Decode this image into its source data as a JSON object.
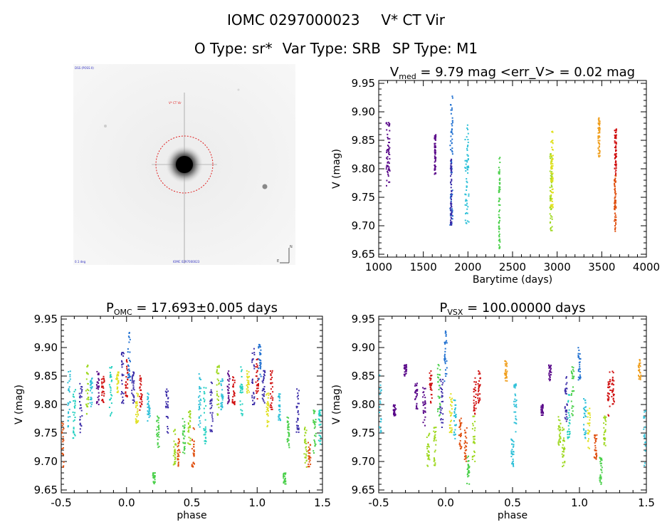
{
  "header": {
    "object_id": "IOMC 0297000023",
    "star_name": "V* CT Vir",
    "o_type": "O Type: sr*",
    "var_type": "Var Type: SRB",
    "sp_type": "SP Type: M1"
  },
  "finder_chart": {
    "labels": [
      "DSS (POSS II)",
      "V* CT Vir",
      "N",
      "E",
      "0.1 deg",
      "IOMC 0297000023"
    ],
    "circle_color": "#e02020"
  },
  "season_colors": [
    "#5a0a8a",
    "#3b2ca8",
    "#1e6fd0",
    "#2ec0d8",
    "#22d0c0",
    "#4ad04a",
    "#9ed820",
    "#e0e020",
    "#f0a020",
    "#e05010",
    "#d01010"
  ],
  "chart_data": [
    {
      "id": "lightcurve",
      "type": "scatter",
      "title_main": "V",
      "title_sub": "med",
      "title_rest": " = 9.79 mag <err_V> = 0.02 mag",
      "xlabel": "Barytime (days)",
      "ylabel": "V (mag)",
      "xlim": [
        1000,
        4000
      ],
      "ylim": [
        9.955,
        9.645
      ],
      "xticks": [
        1000,
        1500,
        2000,
        2500,
        3000,
        3500,
        4000
      ],
      "xtick_labels": [
        "1000",
        "1500",
        "2000",
        "2500",
        "3000",
        "3500",
        "4000"
      ],
      "yticks": [
        9.65,
        9.7,
        9.75,
        9.8,
        9.85,
        9.9,
        9.95
      ],
      "ytick_labels": [
        "9.65",
        "9.70",
        "9.75",
        "9.80",
        "9.85",
        "9.90",
        "9.95"
      ],
      "seasons": [
        {
          "t0": 1085,
          "t1": 1125,
          "vmin": 9.77,
          "vmax": 9.89,
          "color": 0
        },
        {
          "t0": 1625,
          "t1": 1640,
          "vmin": 9.79,
          "vmax": 9.86,
          "color": 0
        },
        {
          "t0": 1800,
          "t1": 1830,
          "vmin": 9.7,
          "vmax": 9.93,
          "color": 2
        },
        {
          "t0": 1805,
          "t1": 1818,
          "vmin": 9.7,
          "vmax": 9.82,
          "color": 1
        },
        {
          "t0": 1965,
          "t1": 2010,
          "vmin": 9.7,
          "vmax": 9.88,
          "color": 3
        },
        {
          "t0": 2345,
          "t1": 2360,
          "vmin": 9.66,
          "vmax": 9.82,
          "color": 5
        },
        {
          "t0": 2920,
          "t1": 2945,
          "vmin": 9.69,
          "vmax": 9.83,
          "color": 6
        },
        {
          "t0": 2930,
          "t1": 2955,
          "vmin": 9.73,
          "vmax": 9.87,
          "color": 7
        },
        {
          "t0": 3460,
          "t1": 3480,
          "vmin": 9.82,
          "vmax": 9.89,
          "color": 8
        },
        {
          "t0": 3640,
          "t1": 3660,
          "vmin": 9.69,
          "vmax": 9.79,
          "color": 9
        },
        {
          "t0": 3645,
          "t1": 3665,
          "vmin": 9.79,
          "vmax": 9.87,
          "color": 10
        }
      ]
    },
    {
      "id": "phase_omc",
      "type": "scatter",
      "title_main": "P",
      "title_sub": "OMC",
      "title_rest": " = 17.693±0.005 days",
      "xlabel": "phase",
      "ylabel": "V (mag)",
      "xlim": [
        -0.5,
        1.5
      ],
      "ylim": [
        9.955,
        9.645
      ],
      "xticks": [
        -0.5,
        0.0,
        0.5,
        1.0,
        1.5
      ],
      "xtick_labels": [
        "-0.5",
        "0.0",
        "0.5",
        "1.0",
        "1.5"
      ],
      "yticks": [
        9.65,
        9.7,
        9.75,
        9.8,
        9.85,
        9.9,
        9.95
      ],
      "ytick_labels": [
        "9.65",
        "9.70",
        "9.75",
        "9.80",
        "9.85",
        "9.90",
        "9.95"
      ],
      "clusters": [
        {
          "ph": -0.49,
          "vmin": 9.69,
          "vmax": 9.77,
          "color": 9
        },
        {
          "ph": -0.44,
          "vmin": 9.76,
          "vmax": 9.86,
          "color": 3
        },
        {
          "ph": -0.4,
          "vmin": 9.73,
          "vmax": 9.83,
          "color": 4
        },
        {
          "ph": -0.35,
          "vmin": 9.75,
          "vmax": 9.84,
          "color": 1
        },
        {
          "ph": -0.3,
          "vmin": 9.78,
          "vmax": 9.87,
          "color": 6
        },
        {
          "ph": -0.27,
          "vmin": 9.79,
          "vmax": 9.85,
          "color": 3
        },
        {
          "ph": -0.22,
          "vmin": 9.8,
          "vmax": 9.86,
          "color": 0
        },
        {
          "ph": -0.18,
          "vmin": 9.8,
          "vmax": 9.85,
          "color": 10
        },
        {
          "ph": -0.12,
          "vmin": 9.78,
          "vmax": 9.87,
          "color": 4
        },
        {
          "ph": -0.07,
          "vmin": 9.82,
          "vmax": 9.86,
          "color": 7
        },
        {
          "ph": -0.03,
          "vmin": 9.8,
          "vmax": 9.9,
          "color": 1
        },
        {
          "ph": 0.0,
          "vmin": 9.81,
          "vmax": 9.88,
          "color": 10
        },
        {
          "ph": 0.02,
          "vmin": 9.84,
          "vmax": 9.93,
          "color": 2
        },
        {
          "ph": 0.05,
          "vmin": 9.8,
          "vmax": 9.86,
          "color": 1
        },
        {
          "ph": 0.08,
          "vmin": 9.76,
          "vmax": 9.82,
          "color": 7
        },
        {
          "ph": 0.11,
          "vmin": 9.79,
          "vmax": 9.86,
          "color": 10
        },
        {
          "ph": 0.17,
          "vmin": 9.77,
          "vmax": 9.82,
          "color": 3
        },
        {
          "ph": 0.21,
          "vmin": 9.66,
          "vmax": 9.68,
          "color": 5
        },
        {
          "ph": 0.24,
          "vmin": 9.72,
          "vmax": 9.78,
          "color": 5
        },
        {
          "ph": 0.31,
          "vmin": 9.75,
          "vmax": 9.83,
          "color": 1
        },
        {
          "ph": 0.37,
          "vmin": 9.69,
          "vmax": 9.76,
          "color": 6
        },
        {
          "ph": 0.4,
          "vmin": 9.69,
          "vmax": 9.74,
          "color": 9
        },
        {
          "ph": 0.44,
          "vmin": 9.71,
          "vmax": 9.78,
          "color": 5
        },
        {
          "ph": 0.48,
          "vmin": 9.73,
          "vmax": 9.79,
          "color": 6
        },
        {
          "ph": 0.51,
          "vmin": 9.69,
          "vmax": 9.76,
          "color": 9
        },
        {
          "ph": 0.56,
          "vmin": 9.76,
          "vmax": 9.86,
          "color": 3
        },
        {
          "ph": 0.6,
          "vmin": 9.73,
          "vmax": 9.83,
          "color": 4
        },
        {
          "ph": 0.65,
          "vmin": 9.75,
          "vmax": 9.84,
          "color": 1
        },
        {
          "ph": 0.7,
          "vmin": 9.78,
          "vmax": 9.87,
          "color": 6
        },
        {
          "ph": 0.73,
          "vmin": 9.79,
          "vmax": 9.85,
          "color": 3
        },
        {
          "ph": 0.78,
          "vmin": 9.8,
          "vmax": 9.86,
          "color": 0
        },
        {
          "ph": 0.82,
          "vmin": 9.8,
          "vmax": 9.85,
          "color": 10
        },
        {
          "ph": 0.88,
          "vmin": 9.78,
          "vmax": 9.87,
          "color": 4
        },
        {
          "ph": 0.93,
          "vmin": 9.82,
          "vmax": 9.86,
          "color": 7
        },
        {
          "ph": 0.97,
          "vmin": 9.8,
          "vmax": 9.9,
          "color": 1
        },
        {
          "ph": 1.0,
          "vmin": 9.81,
          "vmax": 9.88,
          "color": 10
        },
        {
          "ph": 1.02,
          "vmin": 9.84,
          "vmax": 9.91,
          "color": 2
        },
        {
          "ph": 1.05,
          "vmin": 9.8,
          "vmax": 9.86,
          "color": 1
        },
        {
          "ph": 1.08,
          "vmin": 9.76,
          "vmax": 9.82,
          "color": 7
        },
        {
          "ph": 1.11,
          "vmin": 9.79,
          "vmax": 9.86,
          "color": 10
        },
        {
          "ph": 1.17,
          "vmin": 9.77,
          "vmax": 9.82,
          "color": 3
        },
        {
          "ph": 1.21,
          "vmin": 9.66,
          "vmax": 9.68,
          "color": 5
        },
        {
          "ph": 1.24,
          "vmin": 9.72,
          "vmax": 9.78,
          "color": 5
        },
        {
          "ph": 1.31,
          "vmin": 9.75,
          "vmax": 9.83,
          "color": 1
        },
        {
          "ph": 1.37,
          "vmin": 9.69,
          "vmax": 9.76,
          "color": 6
        },
        {
          "ph": 1.4,
          "vmin": 9.69,
          "vmax": 9.74,
          "color": 9
        },
        {
          "ph": 1.44,
          "vmin": 9.71,
          "vmax": 9.79,
          "color": 5
        },
        {
          "ph": 1.48,
          "vmin": 9.73,
          "vmax": 9.79,
          "color": 4
        }
      ]
    },
    {
      "id": "phase_vsx",
      "type": "scatter",
      "title_main": "P",
      "title_sub": "VSX",
      "title_rest": " = 100.00000 days",
      "xlabel": "phase",
      "ylabel": "V (mag)",
      "xlim": [
        -0.5,
        1.5
      ],
      "ylim": [
        9.955,
        9.645
      ],
      "xticks": [
        -0.5,
        0.0,
        0.5,
        1.0,
        1.5
      ],
      "xtick_labels": [
        "-0.5",
        "0.0",
        "0.5",
        "1.0",
        "1.5"
      ],
      "yticks": [
        9.65,
        9.7,
        9.75,
        9.8,
        9.85,
        9.9,
        9.95
      ],
      "ytick_labels": [
        "9.65",
        "9.70",
        "9.75",
        "9.80",
        "9.85",
        "9.90",
        "9.95"
      ],
      "clusters": [
        {
          "ph": -0.49,
          "vmin": 9.75,
          "vmax": 9.86,
          "color": 3
        },
        {
          "ph": -0.38,
          "vmin": 9.78,
          "vmax": 9.8,
          "color": 0
        },
        {
          "ph": -0.3,
          "vmin": 9.85,
          "vmax": 9.87,
          "color": 0
        },
        {
          "ph": -0.22,
          "vmin": 9.79,
          "vmax": 9.84,
          "color": 0
        },
        {
          "ph": -0.16,
          "vmin": 9.76,
          "vmax": 9.83,
          "color": 0
        },
        {
          "ph": -0.13,
          "vmin": 9.69,
          "vmax": 9.75,
          "color": 6
        },
        {
          "ph": -0.11,
          "vmin": 9.8,
          "vmax": 9.86,
          "color": 10
        },
        {
          "ph": -0.08,
          "vmin": 9.69,
          "vmax": 9.76,
          "color": 6
        },
        {
          "ph": -0.05,
          "vmin": 9.78,
          "vmax": 9.87,
          "color": 5
        },
        {
          "ph": -0.03,
          "vmin": 9.76,
          "vmax": 9.85,
          "color": 1
        },
        {
          "ph": 0.0,
          "vmin": 9.84,
          "vmax": 9.93,
          "color": 2
        },
        {
          "ph": 0.04,
          "vmin": 9.75,
          "vmax": 9.82,
          "color": 7
        },
        {
          "ph": 0.07,
          "vmin": 9.74,
          "vmax": 9.81,
          "color": 3
        },
        {
          "ph": 0.11,
          "vmin": 9.72,
          "vmax": 9.78,
          "color": 9
        },
        {
          "ph": 0.15,
          "vmin": 9.7,
          "vmax": 9.76,
          "color": 9
        },
        {
          "ph": 0.17,
          "vmin": 9.66,
          "vmax": 9.71,
          "color": 5
        },
        {
          "ph": 0.21,
          "vmin": 9.7,
          "vmax": 9.78,
          "color": 6
        },
        {
          "ph": 0.22,
          "vmin": 9.78,
          "vmax": 9.85,
          "color": 10
        },
        {
          "ph": 0.25,
          "vmin": 9.8,
          "vmax": 9.86,
          "color": 10
        },
        {
          "ph": 0.45,
          "vmin": 9.84,
          "vmax": 9.88,
          "color": 8
        },
        {
          "ph": 0.5,
          "vmin": 9.69,
          "vmax": 9.74,
          "color": 3
        },
        {
          "ph": 0.52,
          "vmin": 9.75,
          "vmax": 9.84,
          "color": 3
        },
        {
          "ph": 0.72,
          "vmin": 9.78,
          "vmax": 9.8,
          "color": 0
        },
        {
          "ph": 0.78,
          "vmin": 9.84,
          "vmax": 9.87,
          "color": 0
        },
        {
          "ph": 0.85,
          "vmin": 9.72,
          "vmax": 9.78,
          "color": 6
        },
        {
          "ph": 0.88,
          "vmin": 9.69,
          "vmax": 9.76,
          "color": 6
        },
        {
          "ph": 0.9,
          "vmin": 9.77,
          "vmax": 9.85,
          "color": 1
        },
        {
          "ph": 0.92,
          "vmin": 9.74,
          "vmax": 9.82,
          "color": 4
        },
        {
          "ph": 0.95,
          "vmin": 9.78,
          "vmax": 9.87,
          "color": 5
        },
        {
          "ph": 1.0,
          "vmin": 9.84,
          "vmax": 9.9,
          "color": 2
        },
        {
          "ph": 1.04,
          "vmin": 9.74,
          "vmax": 9.81,
          "color": 3
        },
        {
          "ph": 1.07,
          "vmin": 9.72,
          "vmax": 9.8,
          "color": 7
        },
        {
          "ph": 1.12,
          "vmin": 9.7,
          "vmax": 9.76,
          "color": 9
        },
        {
          "ph": 1.16,
          "vmin": 9.66,
          "vmax": 9.71,
          "color": 5
        },
        {
          "ph": 1.19,
          "vmin": 9.72,
          "vmax": 9.78,
          "color": 6
        },
        {
          "ph": 1.22,
          "vmin": 9.78,
          "vmax": 9.86,
          "color": 10
        },
        {
          "ph": 1.25,
          "vmin": 9.8,
          "vmax": 9.86,
          "color": 10
        },
        {
          "ph": 1.45,
          "vmin": 9.84,
          "vmax": 9.88,
          "color": 8
        },
        {
          "ph": 1.49,
          "vmin": 9.69,
          "vmax": 9.79,
          "color": 3
        }
      ]
    }
  ]
}
